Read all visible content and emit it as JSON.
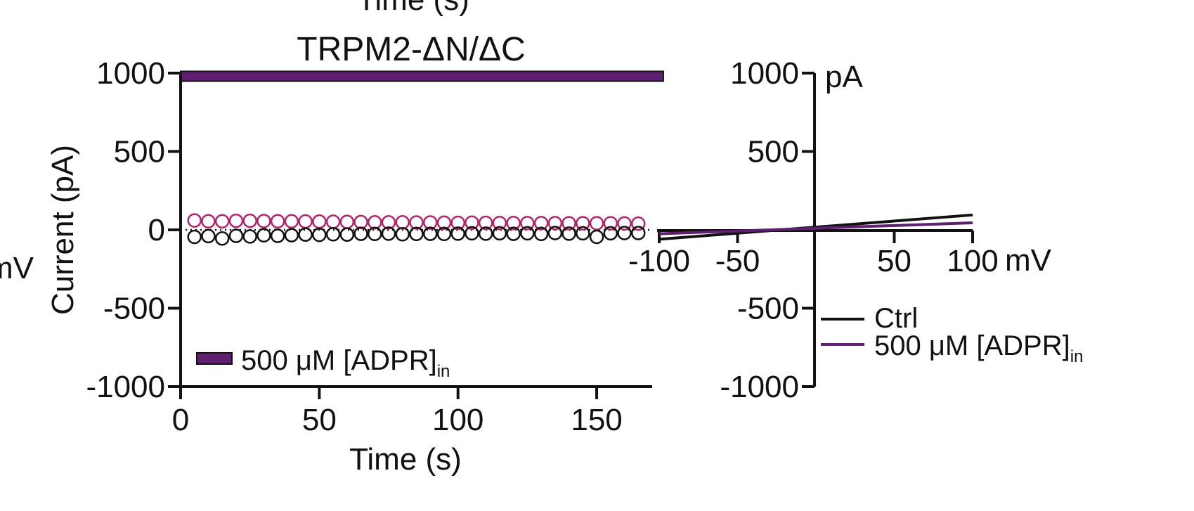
{
  "chart_data": [
    {
      "type": "scatter",
      "title": "TRPM2-ΔN/ΔC",
      "xlabel": "Time (s)",
      "ylabel": "Current (pA)",
      "xlim": [
        0,
        170
      ],
      "ylim": [
        -1000,
        1000
      ],
      "xticks": [
        "0",
        "50",
        "100",
        "150"
      ],
      "yticks": [
        "1000",
        "500",
        "0",
        "-500",
        "-1000"
      ],
      "top_clipped_label": "Time (s)",
      "left_clipped_label": "mV",
      "treatment_bar": {
        "label": "500 μM [ADPR]",
        "label_sub": "in",
        "start": 0,
        "end": 172,
        "level": 980,
        "color": "#5e1f70"
      },
      "legend": {
        "label": "500 μM [ADPR]",
        "label_sub": "in",
        "color": "#5e1f70"
      },
      "zero_line": true,
      "series": [
        {
          "color": "#b0256a",
          "x": [
            5,
            10,
            15,
            20,
            25,
            30,
            35,
            40,
            45,
            50,
            55,
            60,
            65,
            70,
            75,
            80,
            85,
            90,
            95,
            100,
            105,
            110,
            115,
            120,
            125,
            130,
            135,
            140,
            145,
            150,
            155,
            160,
            165
          ],
          "values": [
            60,
            55,
            55,
            58,
            58,
            56,
            55,
            55,
            54,
            53,
            52,
            51,
            50,
            48,
            48,
            48,
            47,
            47,
            46,
            45,
            46,
            45,
            44,
            44,
            43,
            43,
            43,
            42,
            42,
            42,
            42,
            41,
            40
          ]
        },
        {
          "color": "#111111",
          "x": [
            5,
            10,
            15,
            20,
            25,
            30,
            35,
            40,
            45,
            50,
            55,
            60,
            65,
            70,
            75,
            80,
            85,
            90,
            95,
            100,
            105,
            110,
            115,
            120,
            125,
            130,
            135,
            140,
            145,
            150,
            155,
            160,
            165
          ],
          "values": [
            -45,
            -40,
            -55,
            -38,
            -42,
            -35,
            -38,
            -34,
            -30,
            -32,
            -28,
            -30,
            -25,
            -26,
            -24,
            -28,
            -26,
            -25,
            -26,
            -24,
            -22,
            -24,
            -22,
            -25,
            -22,
            -26,
            -20,
            -24,
            -22,
            -45,
            -22,
            -20,
            -20
          ]
        }
      ]
    },
    {
      "type": "line",
      "xlabel": "mV",
      "ylabel": "pA",
      "xlim": [
        -100,
        100
      ],
      "ylim": [
        -1000,
        1000
      ],
      "xticks": [
        "-100",
        "-50",
        "50",
        "100"
      ],
      "yticks": [
        "1000",
        "500",
        "-500",
        "-1000"
      ],
      "series": [
        {
          "name": "Ctrl",
          "color": "#111111",
          "x": [
            -100,
            100
          ],
          "values": [
            -60,
            95
          ]
        },
        {
          "name": "500 μM [ADPR]",
          "name_sub": "in",
          "color": "#5e1f70",
          "x": [
            -100,
            100
          ],
          "values": [
            -25,
            45
          ]
        }
      ]
    }
  ]
}
